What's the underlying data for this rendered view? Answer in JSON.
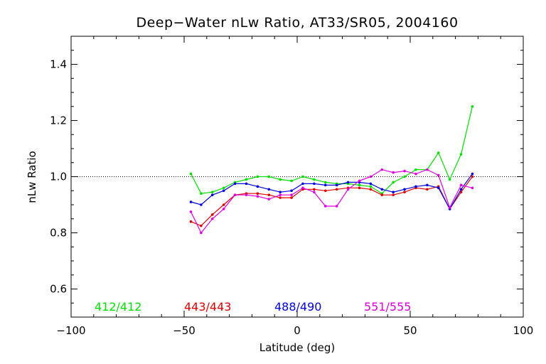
{
  "chart_data": {
    "type": "line",
    "title": "Deep−Water nLw Ratio, AT33/SR05, 2004160",
    "xlabel": "Latitude (deg)",
    "ylabel": "nLw Ratio",
    "xlim": [
      -100,
      100
    ],
    "ylim": [
      0.5,
      1.5
    ],
    "x_ticks": [
      -100,
      -50,
      0,
      50,
      100
    ],
    "x_tick_labels": [
      "−100",
      "−50",
      "0",
      "50",
      "100"
    ],
    "y_ticks": [
      0.6,
      0.8,
      1.0,
      1.2,
      1.4
    ],
    "y_tick_labels": [
      "0.6",
      "0.8",
      "1.0",
      "1.2",
      "1.4"
    ],
    "reference_line": {
      "y": 1.0,
      "style": "dotted"
    },
    "grid": false,
    "legend_placement": "bottom inside plot",
    "series": [
      {
        "name": "412/412",
        "color": "#00e000",
        "x": [
          -47,
          -42.5,
          -37.5,
          -32.5,
          -27.5,
          -22.5,
          -17.5,
          -12.5,
          -7.5,
          -2.5,
          2.5,
          7.5,
          12.5,
          17.5,
          22.5,
          27.5,
          32.5,
          37.5,
          42.5,
          47.5,
          52.5,
          57.5,
          62.5,
          67.5,
          72.5,
          77.5
        ],
        "y": [
          1.01,
          0.94,
          0.945,
          0.96,
          0.98,
          0.99,
          1.0,
          1.0,
          0.99,
          0.985,
          1.0,
          0.99,
          0.98,
          0.975,
          0.975,
          0.97,
          0.965,
          0.94,
          0.98,
          1.0,
          1.025,
          1.025,
          1.085,
          0.99,
          1.08,
          1.25
        ]
      },
      {
        "name": "443/443",
        "color": "#e00000",
        "x": [
          -47,
          -42.5,
          -37.5,
          -32.5,
          -27.5,
          -22.5,
          -17.5,
          -12.5,
          -7.5,
          -2.5,
          2.5,
          7.5,
          12.5,
          17.5,
          22.5,
          27.5,
          32.5,
          37.5,
          42.5,
          47.5,
          52.5,
          57.5,
          62.5,
          67.5,
          72.5,
          77.5
        ],
        "y": [
          0.84,
          0.825,
          0.865,
          0.9,
          0.935,
          0.94,
          0.94,
          0.935,
          0.925,
          0.925,
          0.955,
          0.955,
          0.95,
          0.955,
          0.96,
          0.96,
          0.955,
          0.935,
          0.935,
          0.945,
          0.96,
          0.955,
          0.965,
          0.885,
          0.945,
          1.0
        ]
      },
      {
        "name": "488/490",
        "color": "#0000e0",
        "x": [
          -47,
          -42.5,
          -37.5,
          -32.5,
          -27.5,
          -22.5,
          -17.5,
          -12.5,
          -7.5,
          -2.5,
          2.5,
          7.5,
          12.5,
          17.5,
          22.5,
          27.5,
          32.5,
          37.5,
          42.5,
          47.5,
          52.5,
          57.5,
          62.5,
          67.5,
          72.5,
          77.5
        ],
        "y": [
          0.91,
          0.9,
          0.935,
          0.95,
          0.975,
          0.975,
          0.965,
          0.955,
          0.945,
          0.95,
          0.975,
          0.975,
          0.97,
          0.97,
          0.98,
          0.98,
          0.975,
          0.955,
          0.945,
          0.955,
          0.965,
          0.97,
          0.96,
          0.885,
          0.955,
          1.01
        ]
      },
      {
        "name": "551/555",
        "color": "#e000e0",
        "x": [
          -47,
          -42.5,
          -37.5,
          -32.5,
          -27.5,
          -22.5,
          -17.5,
          -12.5,
          -7.5,
          -2.5,
          2.5,
          7.5,
          12.5,
          17.5,
          22.5,
          27.5,
          32.5,
          37.5,
          42.5,
          47.5,
          52.5,
          57.5,
          62.5,
          67.5,
          72.5,
          77.5
        ],
        "y": [
          0.875,
          0.8,
          0.85,
          0.885,
          0.935,
          0.935,
          0.93,
          0.92,
          0.935,
          0.935,
          0.96,
          0.945,
          0.895,
          0.895,
          0.955,
          0.985,
          1.0,
          1.025,
          1.015,
          1.02,
          1.01,
          1.025,
          1.005,
          0.89,
          0.97,
          0.96
        ]
      }
    ]
  }
}
